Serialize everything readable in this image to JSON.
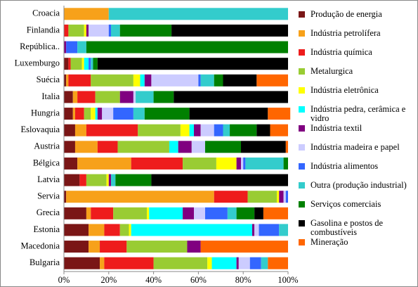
{
  "chart_data": {
    "type": "stacked_barh",
    "categories": [
      "Croacia",
      "Finlandia",
      "República..",
      "Luxemburgo",
      "Suécia",
      "Italia",
      "Hungria",
      "Eslovaquia",
      "Austria",
      "Bélgica",
      "Latvia",
      "Servia",
      "Grecia",
      "Estonia",
      "Macedonia",
      "Bulgaria"
    ],
    "series": [
      {
        "name": "Produção de energia",
        "color": "#7a1616",
        "values": [
          0,
          0,
          0,
          2,
          1,
          4,
          4,
          5,
          5,
          6,
          7,
          1,
          10,
          11,
          11,
          16
        ]
      },
      {
        "name": "Indústria petrolífera",
        "color": "#f7a11a",
        "values": [
          20,
          0,
          0,
          0,
          1,
          2,
          1,
          5,
          10,
          24,
          0,
          66,
          2,
          7,
          5,
          2
        ]
      },
      {
        "name": "Indústria química",
        "color": "#ee1c1c",
        "values": [
          0,
          2,
          0,
          1,
          10,
          8,
          4,
          23,
          9,
          23,
          3,
          15,
          10,
          7,
          12,
          22
        ]
      },
      {
        "name": "Metalurgica",
        "color": "#99cc33",
        "values": [
          0,
          7,
          0,
          5,
          19,
          11,
          3,
          19,
          23,
          15,
          9,
          13,
          15,
          4,
          27,
          24
        ]
      },
      {
        "name": "Indústria eletrônica",
        "color": "#ffff00",
        "values": [
          0,
          1,
          0,
          1,
          3,
          0,
          2,
          4,
          0,
          9,
          1,
          1,
          1,
          1,
          0,
          2
        ]
      },
      {
        "name": "Indústria pedra, cerâmica e vidro",
        "color": "#00ffff",
        "values": [
          0,
          0,
          0,
          2,
          2,
          0,
          1,
          2,
          4,
          0,
          0,
          0,
          15,
          54,
          0,
          11
        ]
      },
      {
        "name": "Indústria textil",
        "color": "#800080",
        "values": [
          0,
          1,
          1,
          0,
          3,
          6,
          2,
          3,
          6,
          2,
          1,
          2,
          5,
          1,
          6,
          1
        ]
      },
      {
        "name": "Indústria madeira e papel",
        "color": "#ccccff",
        "values": [
          0,
          9,
          0,
          0,
          21,
          1,
          5,
          6,
          6,
          1,
          0,
          1,
          5,
          2,
          0,
          5
        ]
      },
      {
        "name": "Indústria alimentos",
        "color": "#3366ff",
        "values": [
          0,
          1,
          5,
          1,
          1,
          0,
          9,
          4,
          0,
          1,
          0,
          1,
          10,
          9,
          0,
          5
        ]
      },
      {
        "name": "Outra (produção industrial)",
        "color": "#33cccc",
        "values": [
          80,
          4,
          4,
          1,
          6,
          8,
          5,
          3,
          0,
          17,
          2,
          0,
          4,
          4,
          0,
          3
        ]
      },
      {
        "name": "Serviços comerciais",
        "color": "#008000",
        "values": [
          0,
          23,
          90,
          2,
          4,
          9,
          20,
          12,
          16,
          2,
          16,
          0,
          8,
          0,
          0,
          0
        ]
      },
      {
        "name": "Gasolina e postos de combustíveis",
        "color": "#000000",
        "values": [
          0,
          52,
          0,
          85,
          15,
          51,
          35,
          6,
          20,
          0,
          61,
          0,
          4,
          0,
          0,
          0
        ]
      },
      {
        "name": "Mineração",
        "color": "#ff6600",
        "values": [
          0,
          0,
          0,
          0,
          14,
          0,
          10,
          8,
          1,
          0,
          0,
          0,
          11,
          0,
          39,
          9
        ]
      }
    ],
    "xlim": [
      0,
      100
    ],
    "xticks": [
      {
        "value": 0,
        "label": "0%"
      },
      {
        "value": 20,
        "label": "20%"
      },
      {
        "value": 40,
        "label": "40%"
      },
      {
        "value": 60,
        "label": "60%"
      },
      {
        "value": 80,
        "label": "80%"
      },
      {
        "value": 100,
        "label": "100%"
      }
    ]
  }
}
